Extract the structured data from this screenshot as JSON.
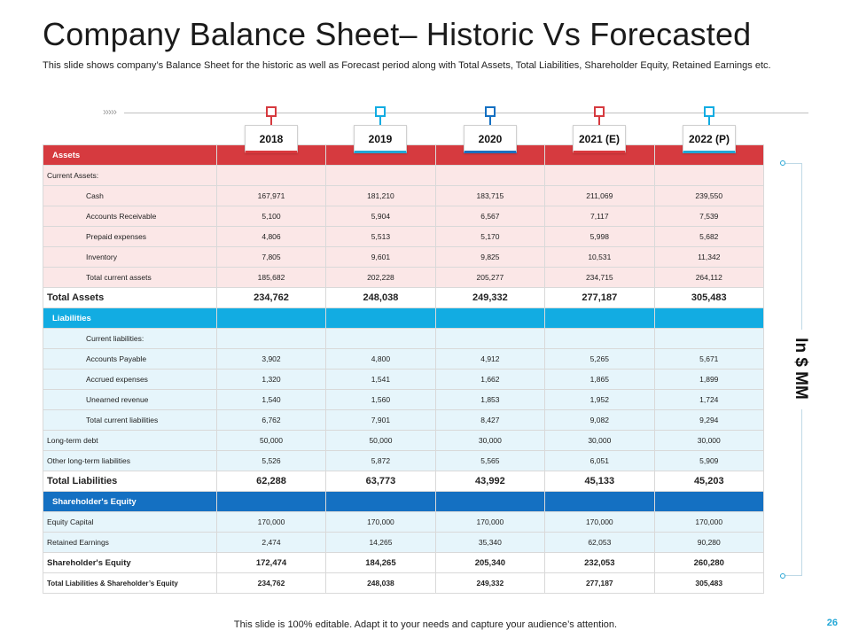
{
  "title": "Company Balance Sheet– Historic Vs Forecasted",
  "subtitle": "This slide shows company’s Balance Sheet for the historic as well as Forecast period along with Total Assets, Total Liabilities, Shareholder Equity, Retained Earnings etc.",
  "timeline_chevrons": "›››››",
  "years": [
    "2018",
    "2019",
    "2020",
    "2021 (E)",
    "2022 (P)"
  ],
  "unit_label": "In $ MM",
  "footer": "This slide is 100% editable. Adapt it to your needs and capture your audience’s attention.",
  "page_number": "26",
  "colors": {
    "red": "#d63a3f",
    "cyan": "#12ace2",
    "blue": "#1470c2",
    "pink_row": "#fbe7e7",
    "lightblue_row": "#e6f5fb"
  },
  "assets": {
    "header": "Assets",
    "rows": [
      {
        "label": "Current Assets:",
        "values": [
          "",
          "",
          "",
          "",
          ""
        ]
      },
      {
        "label": "Cash",
        "values": [
          "167,971",
          "181,210",
          "183,715",
          "211,069",
          "239,550"
        ]
      },
      {
        "label": "Accounts Receivable",
        "values": [
          "5,100",
          "5,904",
          "6,567",
          "7,117",
          "7,539"
        ]
      },
      {
        "label": "Prepaid expenses",
        "values": [
          "4,806",
          "5,513",
          "5,170",
          "5,998",
          "5,682"
        ]
      },
      {
        "label": "Inventory",
        "values": [
          "7,805",
          "9,601",
          "9,825",
          "10,531",
          "11,342"
        ]
      },
      {
        "label": "Total current assets",
        "values": [
          "185,682",
          "202,228",
          "205,277",
          "234,715",
          "264,112"
        ]
      }
    ],
    "total": {
      "label": "Total Assets",
      "values": [
        "234,762",
        "248,038",
        "249,332",
        "277,187",
        "305,483"
      ]
    }
  },
  "liabilities": {
    "header": "Liabilities",
    "rows": [
      {
        "label": "Current liabilities:",
        "values": [
          "",
          "",
          "",
          "",
          ""
        ]
      },
      {
        "label": "Accounts Payable",
        "values": [
          "3,902",
          "4,800",
          "4,912",
          "5,265",
          "5,671"
        ]
      },
      {
        "label": "Accrued expenses",
        "values": [
          "1,320",
          "1,541",
          "1,662",
          "1,865",
          "1,899"
        ]
      },
      {
        "label": "Unearned revenue",
        "values": [
          "1,540",
          "1,560",
          "1,853",
          "1,952",
          "1,724"
        ]
      },
      {
        "label": "Total current liabilities",
        "values": [
          "6,762",
          "7,901",
          "8,427",
          "9,082",
          "9,294"
        ]
      },
      {
        "label": "Long-term debt",
        "values": [
          "50,000",
          "50,000",
          "30,000",
          "30,000",
          "30,000"
        ]
      },
      {
        "label": "Other long-term liabilities",
        "values": [
          "5,526",
          "5,872",
          "5,565",
          "6,051",
          "5,909"
        ]
      }
    ],
    "total": {
      "label": "Total Liabilities",
      "values": [
        "62,288",
        "63,773",
        "43,992",
        "45,133",
        "45,203"
      ]
    }
  },
  "equity": {
    "header": "Shareholder's Equity",
    "rows": [
      {
        "label": "Equity Capital",
        "values": [
          "170,000",
          "170,000",
          "170,000",
          "170,000",
          "170,000"
        ]
      },
      {
        "label": "Retained Earnings",
        "values": [
          "2,474",
          "14,265",
          "35,340",
          "62,053",
          "90,280"
        ]
      }
    ],
    "total": {
      "label": "Shareholder's Equity",
      "values": [
        "172,474",
        "184,265",
        "205,340",
        "232,053",
        "260,280"
      ]
    },
    "grand_total": {
      "label": "Total Liabilities & Shareholder’s Equity",
      "values": [
        "234,762",
        "248,038",
        "249,332",
        "277,187",
        "305,483"
      ]
    }
  }
}
